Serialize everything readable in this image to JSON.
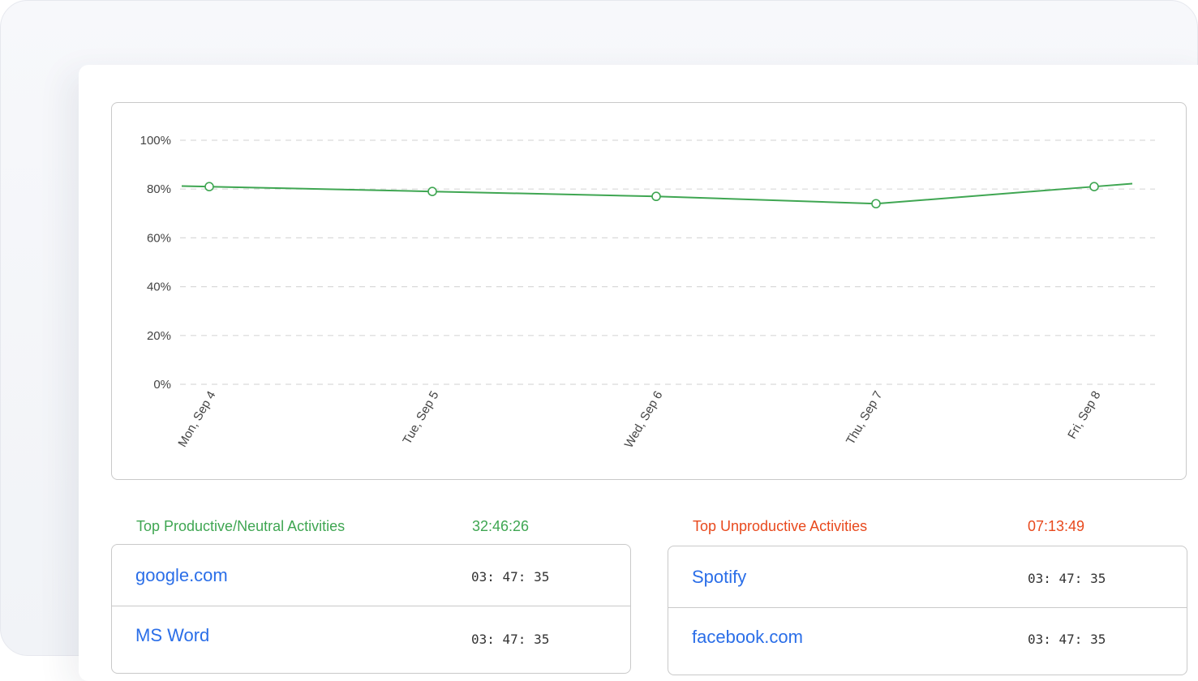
{
  "chart_data": {
    "type": "line",
    "categories": [
      "Mon, Sep 4",
      "Tue, Sep 5",
      "Wed, Sep 6",
      "Thu, Sep 7",
      "Fri, Sep 8"
    ],
    "series": [
      {
        "values": [
          81,
          79,
          77,
          74,
          81
        ]
      }
    ],
    "ylim": [
      0,
      100
    ],
    "y_ticks": [
      "100%",
      "80%",
      "60%",
      "40%",
      "20%",
      "0%"
    ],
    "y_tick_values": [
      100,
      80,
      60,
      40,
      20,
      0
    ],
    "grid": true,
    "line_color": "#3fa652"
  },
  "productive": {
    "title": "Top Productive/Neutral Activities",
    "total": "32:46:26",
    "color": "#3fa652",
    "items": [
      {
        "name": "google.com",
        "time": "03: 47: 35"
      },
      {
        "name": "MS Word",
        "time": "03: 47: 35"
      }
    ]
  },
  "unproductive": {
    "title": "Top Unproductive Activities",
    "total": "07:13:49",
    "color": "#e8491d",
    "items": [
      {
        "name": "Spotify",
        "time": "03: 47: 35"
      },
      {
        "name": "facebook.com",
        "time": "03: 47: 35"
      }
    ]
  }
}
